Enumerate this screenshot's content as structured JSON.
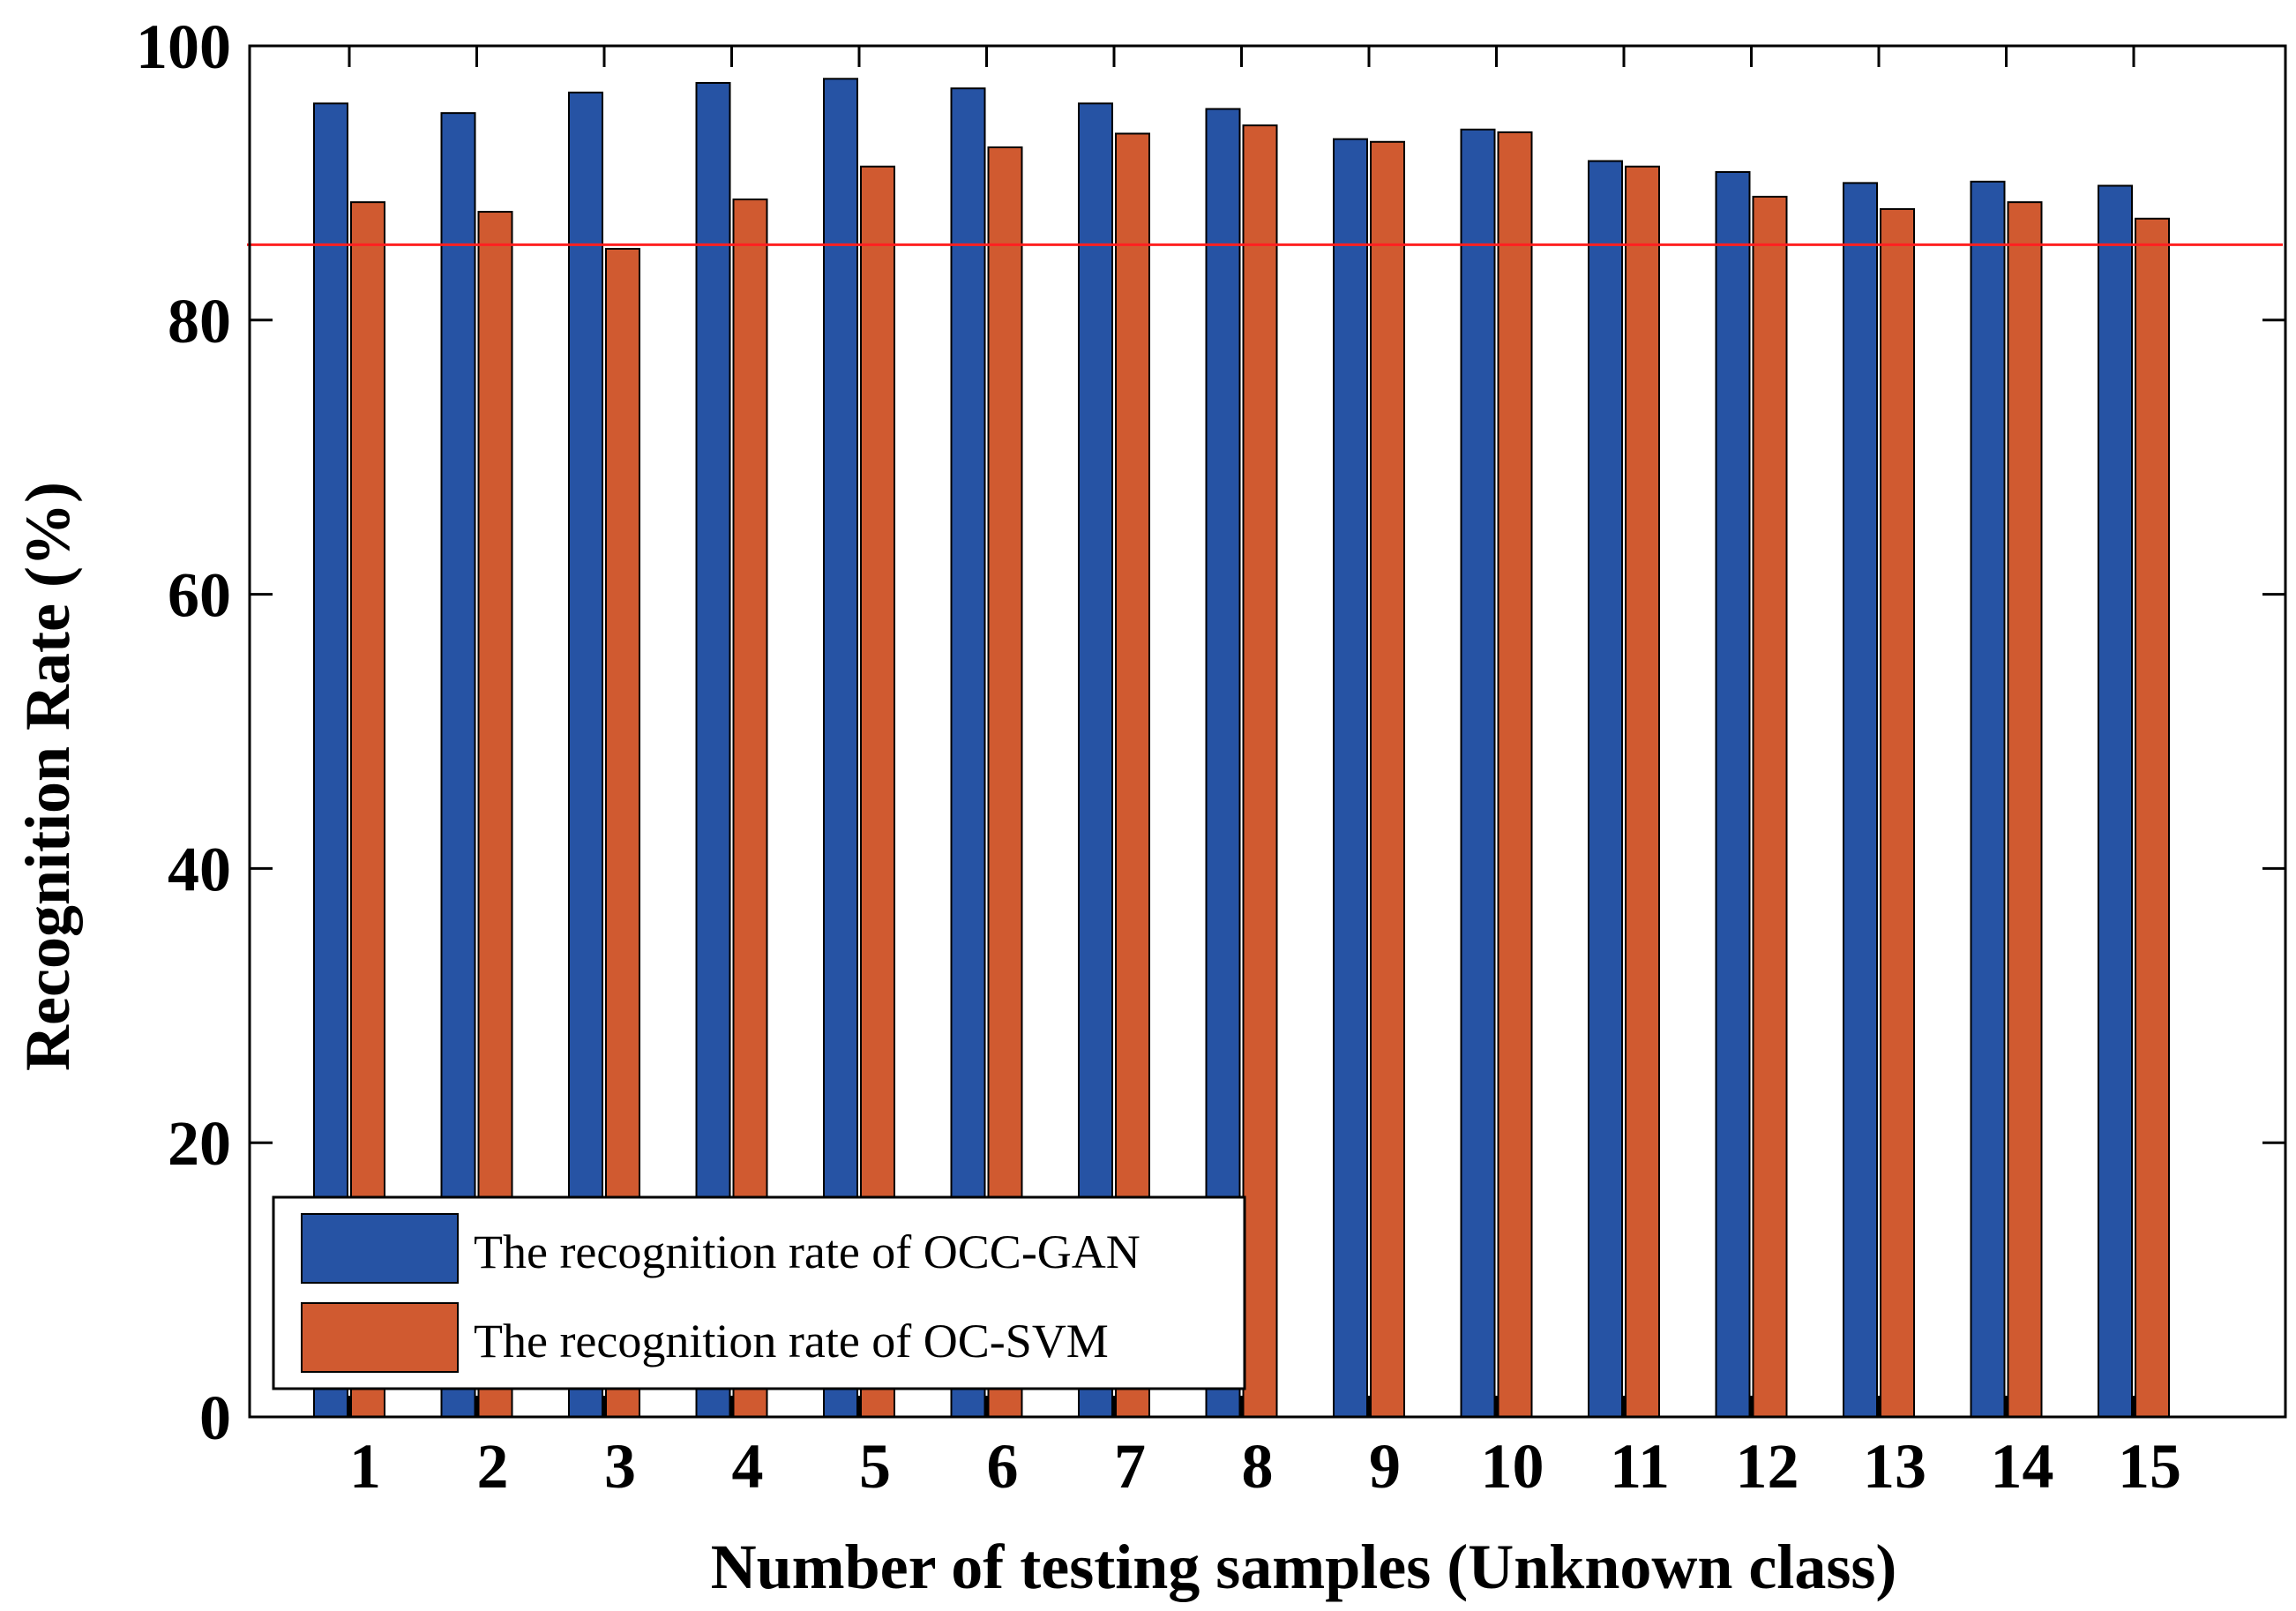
{
  "chart_data": {
    "type": "bar",
    "title": "",
    "xlabel": "Number of testing samples (Unknown class)",
    "ylabel": "Recognition Rate (%)",
    "ylim": [
      0,
      100
    ],
    "yticks": [
      0,
      20,
      40,
      60,
      80,
      100
    ],
    "categories": [
      "1",
      "2",
      "3",
      "4",
      "5",
      "6",
      "7",
      "8",
      "9",
      "10",
      "11",
      "12",
      "13",
      "14",
      "15"
    ],
    "series": [
      {
        "name": "The recognition rate of OCC-GAN",
        "color": "#2653A4",
        "values": [
          95.8,
          95.1,
          96.6,
          97.3,
          97.6,
          96.9,
          95.8,
          95.4,
          93.2,
          93.9,
          91.6,
          90.8,
          90.0,
          90.1,
          89.8
        ]
      },
      {
        "name": "The recognition rate of OC-SVM",
        "color": "#D05A30",
        "values": [
          88.6,
          87.9,
          85.2,
          88.8,
          91.2,
          92.6,
          93.6,
          94.2,
          93.0,
          93.7,
          91.2,
          89.0,
          88.1,
          88.6,
          87.4
        ]
      }
    ],
    "reference_line": {
      "value": 85.5,
      "color": "#FF2020"
    },
    "legend": {
      "position": "bottom-left",
      "entries": [
        "The recognition rate of OCC-GAN",
        "The recognition rate of OC-SVM"
      ]
    }
  }
}
